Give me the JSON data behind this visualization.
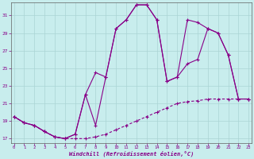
{
  "xlabel": "Windchill (Refroidissement éolien,°C)",
  "background_color": "#c8eded",
  "line_color": "#880088",
  "grid_color": "#aad4d4",
  "xmin": -0.3,
  "xmax": 23.3,
  "ymin": 16.5,
  "ymax": 32.5,
  "yticks": [
    17,
    19,
    21,
    23,
    25,
    27,
    29,
    31
  ],
  "xticks": [
    0,
    1,
    2,
    3,
    4,
    5,
    6,
    7,
    8,
    9,
    10,
    11,
    12,
    13,
    14,
    15,
    16,
    17,
    18,
    19,
    20,
    21,
    22,
    23
  ],
  "curve1_x": [
    0,
    1,
    2,
    3,
    4,
    5,
    6,
    7,
    8,
    9,
    10,
    11,
    12,
    13,
    14,
    15,
    16,
    17,
    18,
    19,
    20,
    21,
    22,
    23
  ],
  "curve1_y": [
    19.5,
    18.8,
    18.5,
    17.8,
    17.2,
    17.0,
    17.0,
    17.0,
    17.2,
    17.5,
    18.0,
    18.5,
    19.0,
    19.5,
    20.0,
    20.5,
    21.0,
    21.2,
    21.3,
    21.5,
    21.5,
    21.5,
    21.5,
    21.5
  ],
  "curve2_x": [
    0,
    1,
    2,
    3,
    4,
    5,
    6,
    7,
    8,
    9,
    10,
    11,
    12,
    13,
    14,
    15,
    16,
    17,
    18,
    19,
    20,
    21,
    22,
    23
  ],
  "curve2_y": [
    19.5,
    18.8,
    18.5,
    17.8,
    17.2,
    17.0,
    17.5,
    22.0,
    24.5,
    24.0,
    29.5,
    30.5,
    32.2,
    32.2,
    30.5,
    23.5,
    24.0,
    30.5,
    30.2,
    29.5,
    29.0,
    26.5,
    21.5,
    21.5
  ],
  "curve3_x": [
    0,
    1,
    2,
    3,
    4,
    5,
    6,
    7,
    8,
    9,
    10,
    11,
    12,
    13,
    14,
    15,
    16,
    17,
    18,
    19,
    20,
    21,
    22,
    23
  ],
  "curve3_y": [
    19.5,
    18.8,
    18.5,
    17.8,
    17.2,
    17.0,
    17.5,
    22.0,
    18.5,
    24.0,
    29.5,
    30.5,
    32.2,
    32.2,
    30.5,
    23.5,
    24.0,
    25.5,
    26.0,
    29.5,
    29.0,
    26.5,
    21.5,
    21.5
  ]
}
